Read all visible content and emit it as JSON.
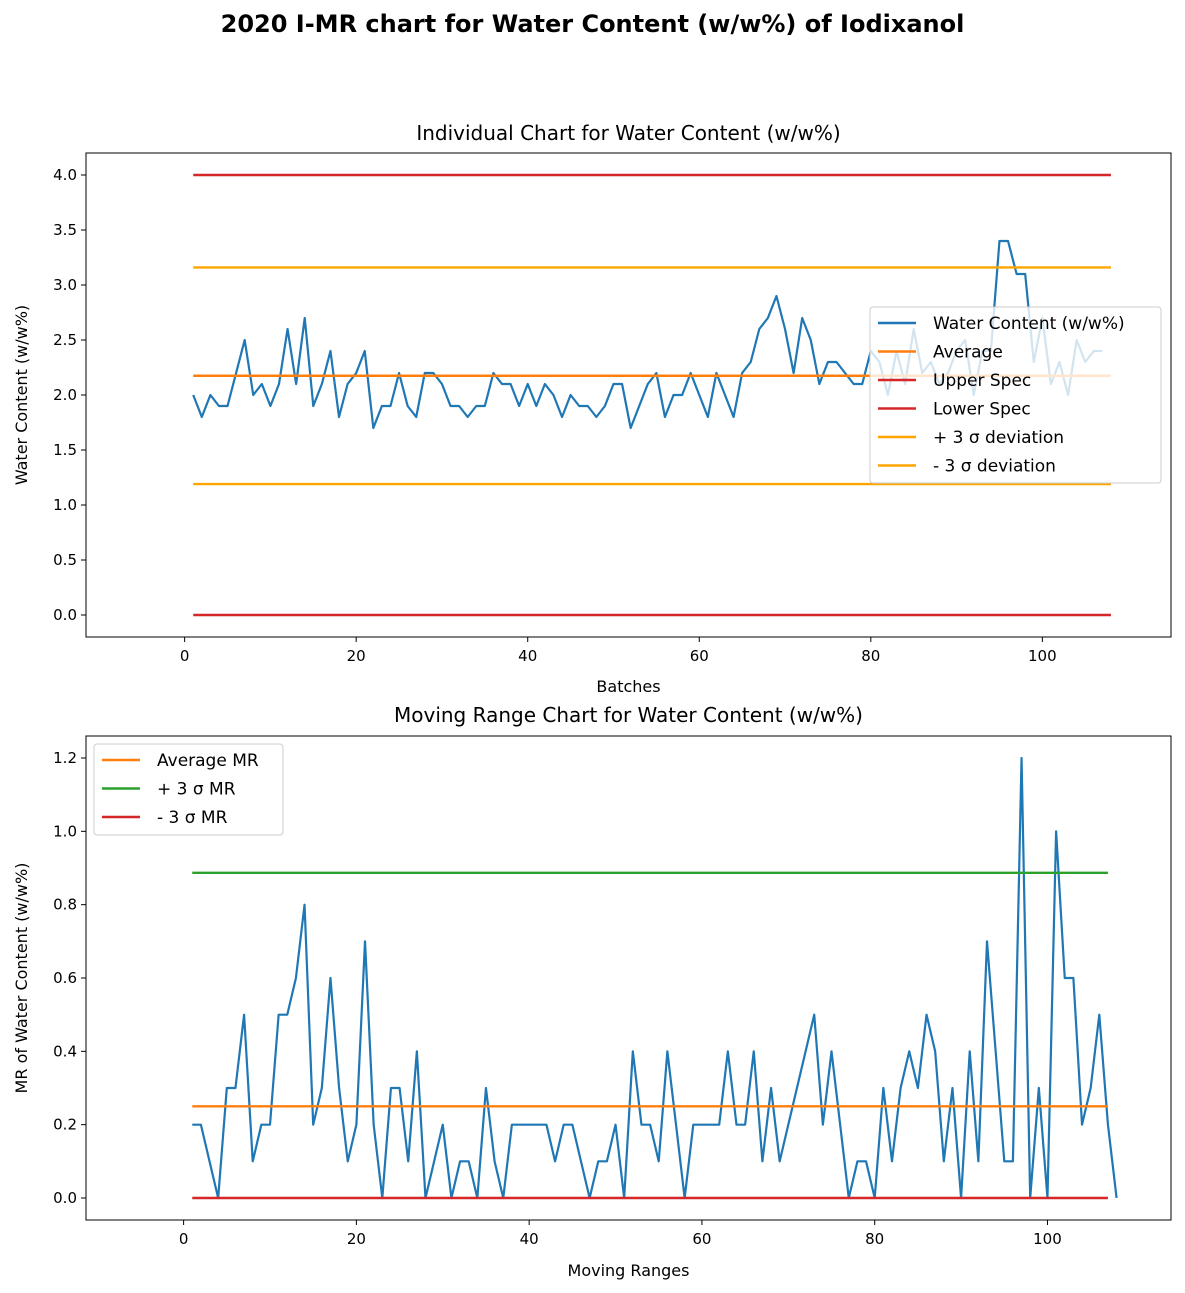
{
  "page": {
    "suptitle": "2020 I-MR chart for Water Content (w/w%) of Iodixanol"
  },
  "chart_data": [
    {
      "type": "line",
      "title": "Individual Chart for Water Content (w/w%)",
      "xlabel": "Batches",
      "ylabel": "Water Content (w/w%)",
      "xlim": [
        -11.5,
        115
      ],
      "ylim": [
        -0.2,
        4.2
      ],
      "xticks": [
        0,
        20,
        40,
        60,
        80,
        100
      ],
      "yticks": [
        0.0,
        0.5,
        1.0,
        1.5,
        2.0,
        2.5,
        3.0,
        3.5,
        4.0
      ],
      "x_start": 1,
      "values": [
        2.0,
        1.8,
        2.0,
        1.9,
        1.9,
        2.2,
        2.5,
        2.0,
        2.1,
        1.9,
        2.1,
        2.6,
        2.1,
        2.7,
        1.9,
        2.1,
        2.4,
        1.8,
        2.1,
        2.2,
        2.4,
        1.7,
        1.9,
        1.9,
        2.2,
        1.9,
        1.8,
        2.2,
        2.2,
        2.1,
        1.9,
        1.9,
        1.8,
        1.9,
        1.9,
        2.2,
        2.1,
        2.1,
        1.9,
        2.1,
        1.9,
        2.1,
        2.0,
        1.8,
        2.0,
        1.9,
        1.9,
        1.8,
        1.9,
        2.1,
        2.1,
        1.7,
        1.9,
        2.1,
        2.2,
        1.8,
        2.0,
        2.0,
        2.2,
        2.0,
        1.8,
        2.2,
        2.0,
        1.8,
        2.2,
        2.3,
        2.6,
        2.7,
        2.9,
        2.6,
        2.2,
        2.7,
        2.5,
        2.1,
        2.3,
        2.3,
        2.2,
        2.1,
        2.1,
        2.4,
        2.3,
        2.0,
        2.4,
        2.1,
        2.6,
        2.2,
        2.3,
        2.1,
        2.2,
        2.4,
        2.5,
        2.0,
        2.4,
        2.4,
        3.4,
        3.4,
        3.1,
        3.1,
        2.3,
        2.7,
        2.1,
        2.3,
        2.0,
        2.5,
        2.3,
        2.4,
        2.4
      ],
      "hlines": [
        {
          "name": "Average",
          "y": 2.175,
          "color": "#ff7f0e"
        },
        {
          "name": "Upper Spec",
          "y": 4.0,
          "color": "#d62728"
        },
        {
          "name": "Lower Spec",
          "y": 0.0,
          "color": "#d62728"
        },
        {
          "name": "+ 3 σ deviation",
          "y": 3.16,
          "color": "#ffa500"
        },
        {
          "name": "- 3 σ deviation",
          "y": 1.19,
          "color": "#ffa500"
        }
      ],
      "hline_x": [
        1,
        108
      ],
      "series_name": "Water Content (w/w%)",
      "series_color": "#1f77b4",
      "legend": {
        "position": "center-right",
        "items": [
          {
            "label": "Water Content (w/w%)",
            "color": "#1f77b4"
          },
          {
            "label": "Average",
            "color": "#ff7f0e"
          },
          {
            "label": "Upper Spec",
            "color": "#d62728"
          },
          {
            "label": "Lower Spec",
            "color": "#d62728"
          },
          {
            "label": "+ 3 σ deviation",
            "color": "#ffa500"
          },
          {
            "label": "- 3 σ deviation",
            "color": "#ffa500"
          }
        ]
      }
    },
    {
      "type": "line",
      "title": "Moving Range Chart for Water Content (w/w%)",
      "xlabel": "Moving Ranges",
      "ylabel": "MR of Water Content (w/w%)",
      "xlim": [
        -11.3,
        114.3
      ],
      "ylim": [
        -0.06,
        1.26
      ],
      "xticks": [
        0,
        20,
        40,
        60,
        80,
        100
      ],
      "yticks": [
        0.0,
        0.2,
        0.4,
        0.6,
        0.8,
        1.0,
        1.2
      ],
      "x_start": 1,
      "values": [
        0.2,
        0.2,
        0.1,
        0.0,
        0.3,
        0.3,
        0.5,
        0.1,
        0.2,
        0.2,
        0.5,
        0.5,
        0.6,
        0.8,
        0.2,
        0.3,
        0.6,
        0.3,
        0.1,
        0.2,
        0.7,
        0.2,
        0.0,
        0.3,
        0.3,
        0.1,
        0.4,
        0.0,
        0.1,
        0.2,
        0.0,
        0.1,
        0.1,
        0.0,
        0.3,
        0.1,
        0.0,
        0.2,
        0.2,
        0.2,
        0.2,
        0.2,
        0.1,
        0.2,
        0.2,
        0.1,
        0.0,
        0.1,
        0.1,
        0.2,
        0.0,
        0.4,
        0.2,
        0.2,
        0.1,
        0.4,
        0.2,
        0.0,
        0.2,
        0.2,
        0.2,
        0.2,
        0.4,
        0.2,
        0.2,
        0.4,
        0.1,
        0.3,
        0.1,
        0.2,
        0.3,
        0.4,
        0.5,
        0.2,
        0.4,
        0.2,
        0.0,
        0.1,
        0.1,
        0.0,
        0.3,
        0.1,
        0.3,
        0.4,
        0.3,
        0.5,
        0.4,
        0.1,
        0.3,
        0.0,
        0.4,
        0.1,
        0.7,
        0.4,
        0.1,
        0.1,
        1.2,
        0.0,
        0.3,
        0.0,
        1.0,
        0.6,
        0.6,
        0.2,
        0.3,
        0.5,
        0.2,
        0.0
      ],
      "hlines": [
        {
          "name": "Average MR",
          "y": 0.25,
          "color": "#ff7f0e"
        },
        {
          "name": "+ 3 σ MR",
          "y": 0.887,
          "color": "#2ca02c"
        },
        {
          "name": "- 3 σ MR",
          "y": 0.0,
          "color": "#d62728"
        }
      ],
      "hline_x": [
        1,
        107
      ],
      "series_color": "#1f77b4",
      "legend": {
        "position": "upper-left",
        "items": [
          {
            "label": "Average MR",
            "color": "#ff7f0e"
          },
          {
            "label": "+ 3 σ MR",
            "color": "#2ca02c"
          },
          {
            "label": "- 3 σ MR",
            "color": "#d62728"
          }
        ]
      }
    }
  ]
}
